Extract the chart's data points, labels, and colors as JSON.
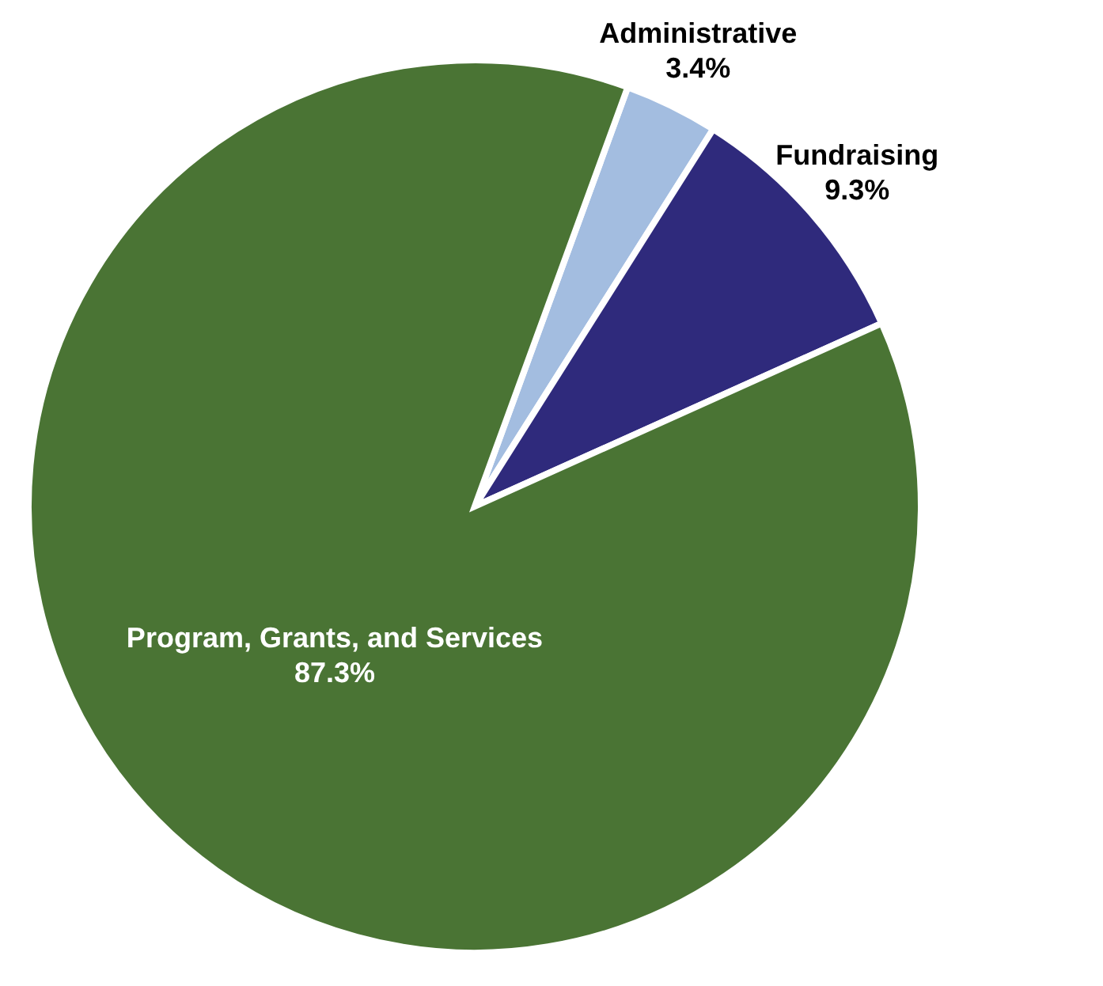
{
  "chart_data": {
    "type": "pie",
    "categories": [
      "Administrative",
      "Fundraising",
      "Program, Grants, and Services"
    ],
    "values": [
      3.4,
      9.3,
      87.3
    ],
    "colors": [
      "#a3bde0",
      "#2f2a7c",
      "#4a7434"
    ],
    "value_labels": [
      "3.4%",
      "9.3%",
      "87.3%"
    ],
    "legend": false
  }
}
